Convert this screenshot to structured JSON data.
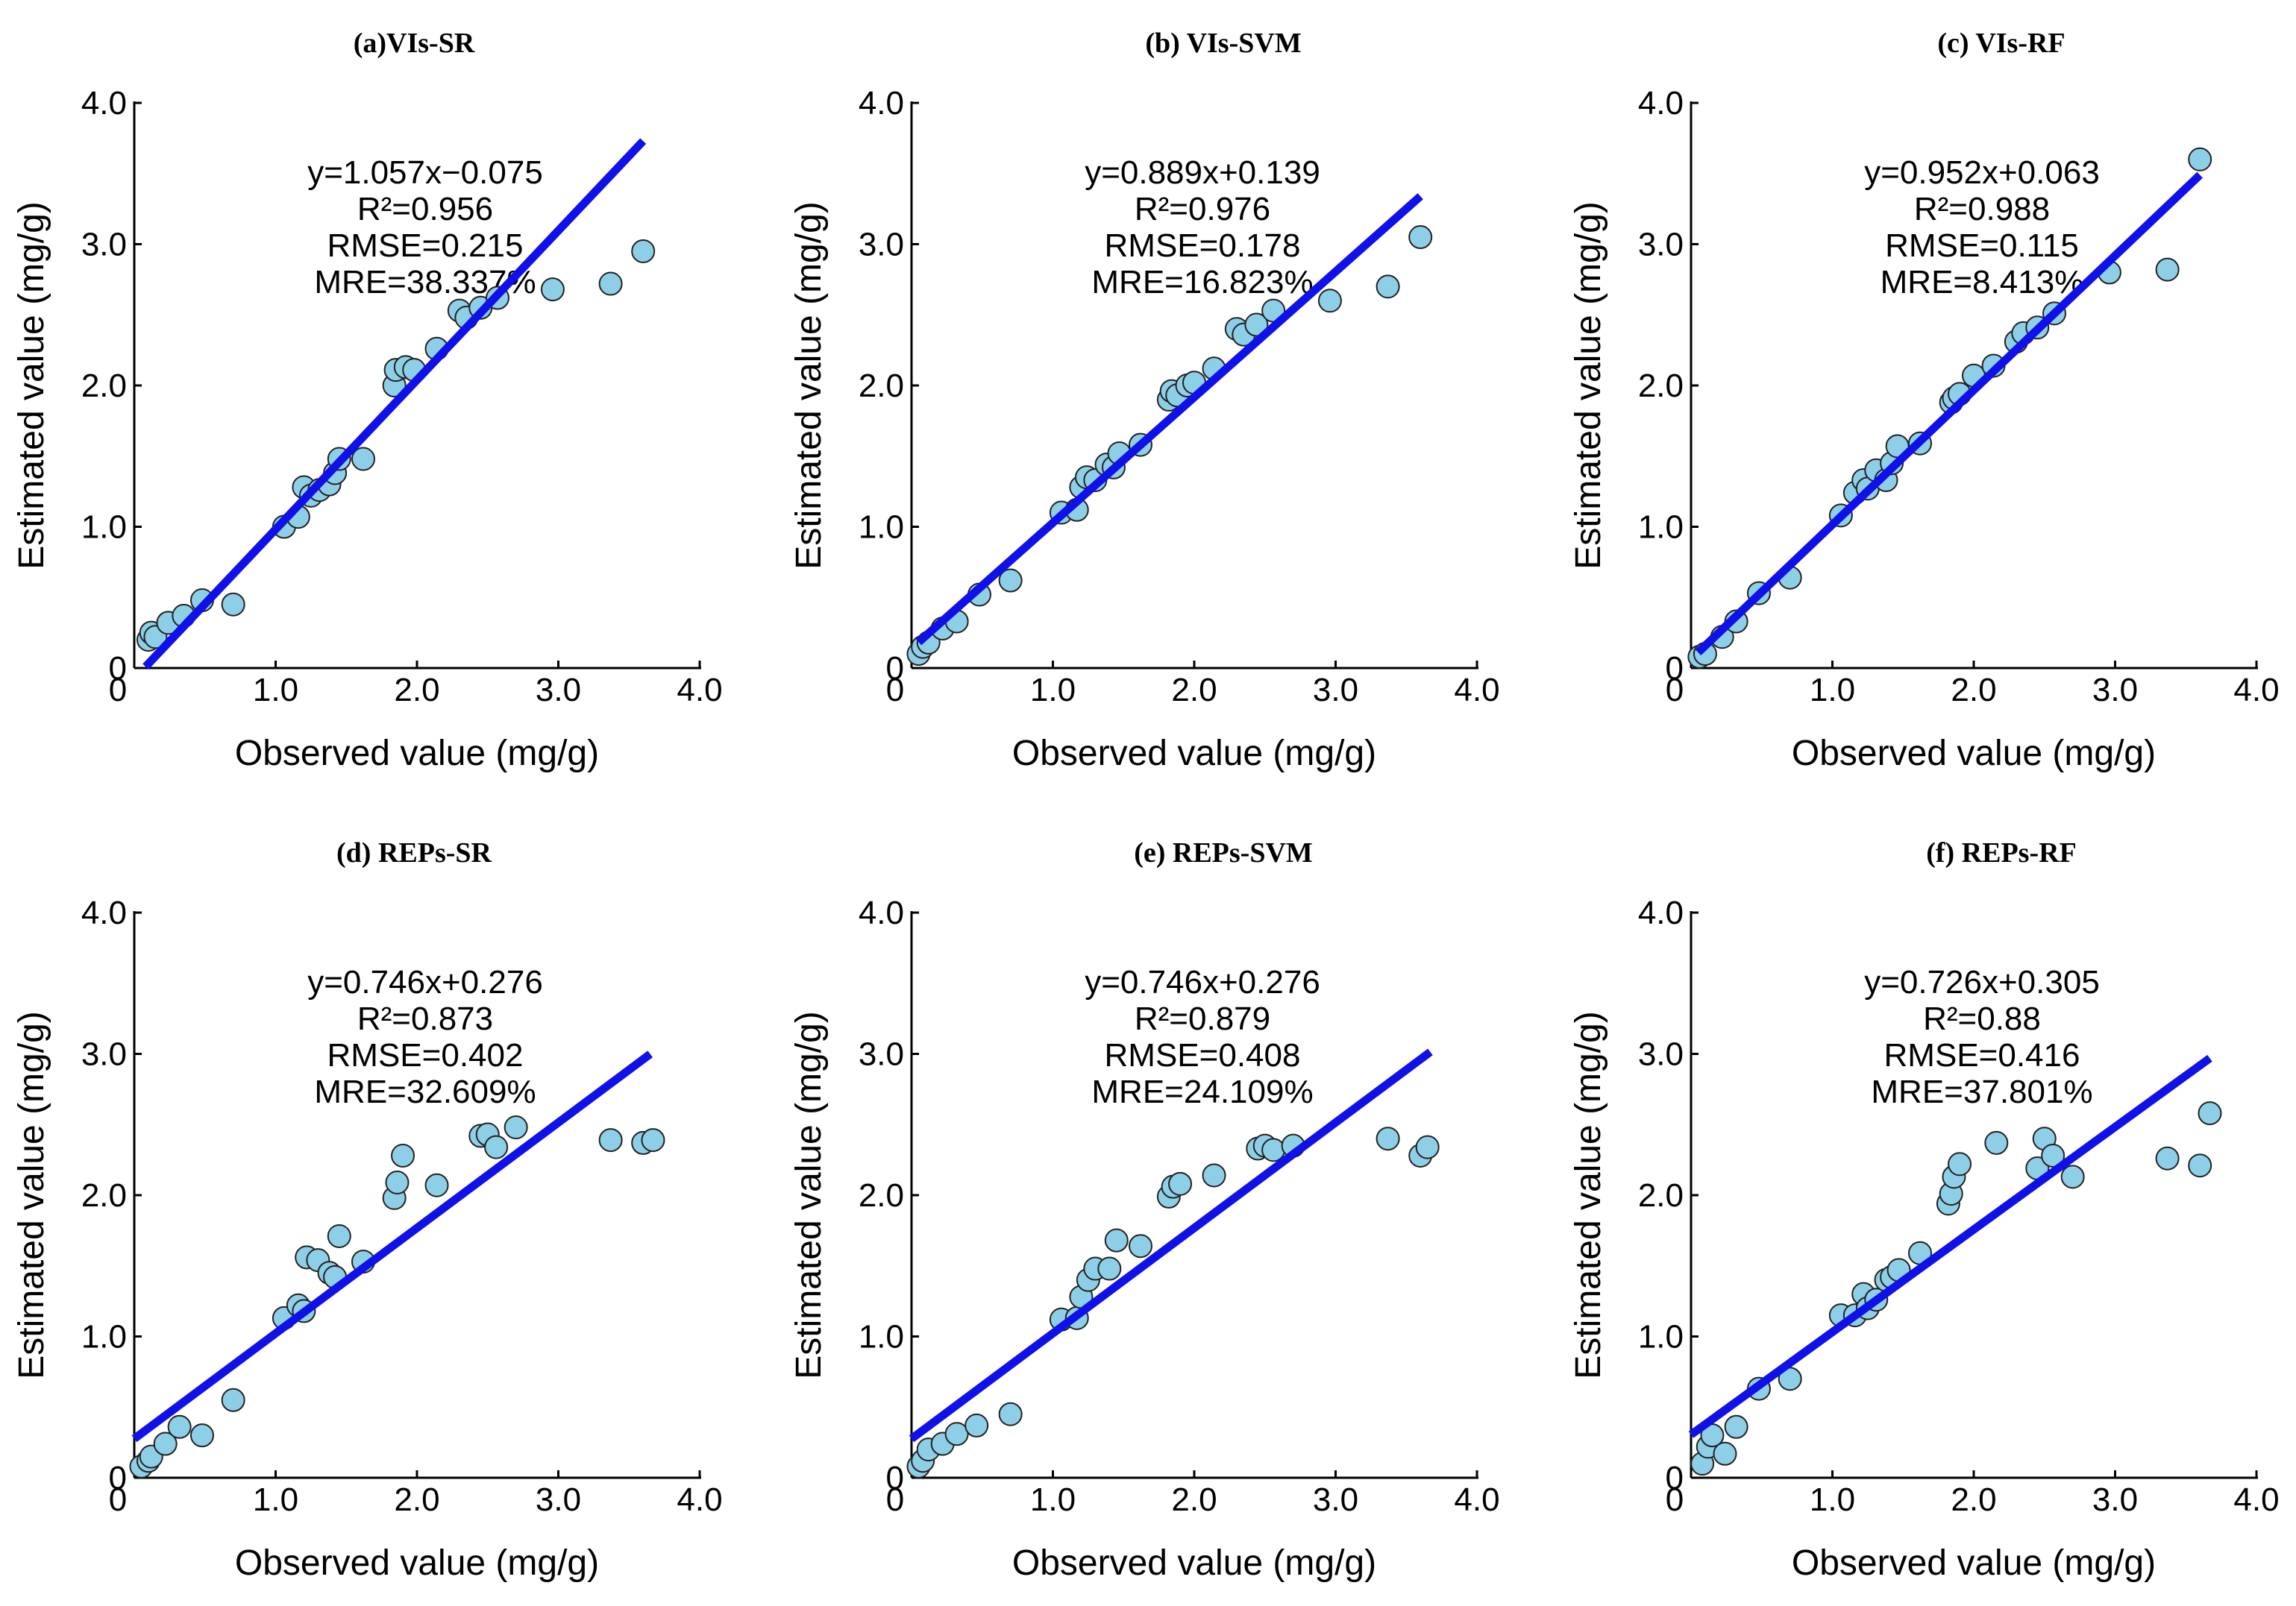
{
  "chart_data": [
    {
      "type": "scatter",
      "title": "(a)VIs-SR",
      "xlabel": "Observed value (mg/g)",
      "ylabel": "Estimated value (mg/g)",
      "xlim": [
        0,
        4
      ],
      "ylim": [
        0,
        4
      ],
      "x_ticks": [
        "0",
        "1.0",
        "2.0",
        "3.0",
        "4.0"
      ],
      "y_ticks": [
        "0",
        "1.0",
        "2.0",
        "3.0",
        "4.0"
      ],
      "annotations": [
        "y=1.057x−0.075",
        "R²=0.956",
        "RMSE=0.215",
        "MRE=38.337%"
      ],
      "fit": {
        "slope": 1.057,
        "intercept": -0.075,
        "x_range": [
          0.08,
          3.6
        ]
      },
      "x": [
        0.1,
        0.12,
        0.15,
        0.24,
        0.35,
        0.48,
        0.7,
        1.06,
        1.16,
        1.2,
        1.25,
        1.31,
        1.38,
        1.42,
        1.45,
        1.62,
        1.84,
        1.85,
        1.92,
        1.98,
        2.14,
        2.3,
        2.35,
        2.45,
        2.57,
        2.96,
        3.37,
        3.6
      ],
      "y": [
        0.2,
        0.25,
        0.22,
        0.32,
        0.37,
        0.48,
        0.45,
        1.0,
        1.07,
        1.28,
        1.22,
        1.26,
        1.3,
        1.38,
        1.48,
        1.48,
        2.0,
        2.11,
        2.13,
        2.11,
        2.26,
        2.53,
        2.48,
        2.55,
        2.62,
        2.68,
        2.72,
        2.95
      ]
    },
    {
      "type": "scatter",
      "title": "(b) VIs-SVM",
      "xlabel": "Observed value (mg/g)",
      "ylabel": "Estimated value (mg/g)",
      "xlim": [
        0,
        4
      ],
      "ylim": [
        0,
        4
      ],
      "x_ticks": [
        "0",
        "1.0",
        "2.0",
        "3.0",
        "4.0"
      ],
      "y_ticks": [
        "0",
        "1.0",
        "2.0",
        "3.0",
        "4.0"
      ],
      "annotations": [
        "y=0.889x+0.139",
        "R²=0.976",
        "RMSE=0.178",
        "MRE=16.823%"
      ],
      "fit": {
        "slope": 0.889,
        "intercept": 0.139,
        "x_range": [
          0.05,
          3.6
        ]
      },
      "x": [
        0.05,
        0.08,
        0.12,
        0.22,
        0.32,
        0.48,
        0.7,
        1.06,
        1.17,
        1.2,
        1.24,
        1.3,
        1.38,
        1.43,
        1.47,
        1.62,
        1.82,
        1.84,
        1.88,
        1.95,
        2.0,
        2.14,
        2.3,
        2.35,
        2.44,
        2.56,
        2.96,
        3.37,
        3.6
      ],
      "y": [
        0.1,
        0.15,
        0.18,
        0.28,
        0.33,
        0.52,
        0.62,
        1.1,
        1.12,
        1.28,
        1.35,
        1.33,
        1.44,
        1.42,
        1.52,
        1.58,
        1.9,
        1.96,
        1.93,
        2.0,
        2.02,
        2.12,
        2.4,
        2.36,
        2.43,
        2.53,
        2.6,
        2.7,
        3.05
      ]
    },
    {
      "type": "scatter",
      "title": "(c) VIs-RF",
      "xlabel": "Observed value (mg/g)",
      "ylabel": "Estimated value (mg/g)",
      "xlim": [
        0,
        4
      ],
      "ylim": [
        0,
        4
      ],
      "x_ticks": [
        "0",
        "1.0",
        "2.0",
        "3.0",
        "4.0"
      ],
      "y_ticks": [
        "0",
        "1.0",
        "2.0",
        "3.0",
        "4.0"
      ],
      "annotations": [
        "y=0.952x+0.063",
        "R²=0.988",
        "RMSE=0.115",
        "MRE=8.413%"
      ],
      "fit": {
        "slope": 0.952,
        "intercept": 0.063,
        "x_range": [
          0.05,
          3.6
        ]
      },
      "x": [
        0.06,
        0.1,
        0.22,
        0.32,
        0.48,
        0.7,
        1.06,
        1.16,
        1.22,
        1.25,
        1.31,
        1.38,
        1.42,
        1.46,
        1.62,
        1.84,
        1.86,
        1.9,
        2.0,
        2.14,
        2.3,
        2.35,
        2.45,
        2.57,
        2.96,
        3.37,
        3.6
      ],
      "y": [
        0.08,
        0.1,
        0.22,
        0.33,
        0.53,
        0.64,
        1.08,
        1.24,
        1.33,
        1.27,
        1.4,
        1.33,
        1.45,
        1.57,
        1.59,
        1.88,
        1.91,
        1.94,
        2.07,
        2.14,
        2.31,
        2.37,
        2.41,
        2.51,
        2.8,
        2.82,
        3.6
      ]
    },
    {
      "type": "scatter",
      "title": "(d) REPs-SR",
      "xlabel": "Observed value (mg/g)",
      "ylabel": "Estimated value (mg/g)",
      "xlim": [
        0,
        4
      ],
      "ylim": [
        0,
        4
      ],
      "x_ticks": [
        "0",
        "1.0",
        "2.0",
        "3.0",
        "4.0"
      ],
      "y_ticks": [
        "0",
        "1.0",
        "2.0",
        "3.0",
        "4.0"
      ],
      "annotations": [
        "y=0.746x+0.276",
        "R²=0.873",
        "RMSE=0.402",
        "MRE=32.609%"
      ],
      "fit": {
        "slope": 0.746,
        "intercept": 0.276,
        "x_range": [
          0.0,
          3.65
        ]
      },
      "x": [
        0.05,
        0.1,
        0.12,
        0.22,
        0.32,
        0.48,
        0.7,
        1.06,
        1.16,
        1.2,
        1.22,
        1.3,
        1.38,
        1.42,
        1.45,
        1.62,
        1.84,
        1.86,
        1.9,
        2.14,
        2.45,
        2.5,
        2.56,
        2.7,
        3.37,
        3.6,
        3.67
      ],
      "y": [
        0.08,
        0.12,
        0.15,
        0.24,
        0.36,
        0.3,
        0.55,
        1.13,
        1.22,
        1.18,
        1.56,
        1.54,
        1.45,
        1.42,
        1.71,
        1.53,
        1.98,
        2.09,
        2.28,
        2.07,
        2.42,
        2.43,
        2.34,
        2.48,
        2.39,
        2.37,
        2.39
      ]
    },
    {
      "type": "scatter",
      "title": "(e) REPs-SVM",
      "xlabel": "Observed value (mg/g)",
      "ylabel": "Estimated value (mg/g)",
      "xlim": [
        0,
        4
      ],
      "ylim": [
        0,
        4
      ],
      "x_ticks": [
        "0",
        "1.0",
        "2.0",
        "3.0",
        "4.0"
      ],
      "y_ticks": [
        "0",
        "1.0",
        "2.0",
        "3.0",
        "4.0"
      ],
      "annotations": [
        "y=0.746x+0.276",
        "R²=0.879",
        "RMSE=0.408",
        "MRE=24.109%"
      ],
      "fit": {
        "slope": 0.746,
        "intercept": 0.276,
        "x_range": [
          0.0,
          3.67
        ]
      },
      "x": [
        0.05,
        0.08,
        0.12,
        0.22,
        0.32,
        0.46,
        0.7,
        1.06,
        1.17,
        1.2,
        1.25,
        1.3,
        1.4,
        1.45,
        1.62,
        1.82,
        1.85,
        1.9,
        2.14,
        2.45,
        2.5,
        2.56,
        2.7,
        3.37,
        3.6,
        3.65
      ],
      "y": [
        0.08,
        0.12,
        0.2,
        0.24,
        0.31,
        0.37,
        0.45,
        1.12,
        1.13,
        1.28,
        1.4,
        1.48,
        1.48,
        1.68,
        1.64,
        1.99,
        2.06,
        2.08,
        2.14,
        2.33,
        2.35,
        2.32,
        2.35,
        2.4,
        2.28,
        2.34
      ]
    },
    {
      "type": "scatter",
      "title": "(f) REPs-RF",
      "xlabel": "Observed value (mg/g)",
      "ylabel": "Estimated value (mg/g)",
      "xlim": [
        0,
        4
      ],
      "ylim": [
        0,
        4
      ],
      "x_ticks": [
        "0",
        "1.0",
        "2.0",
        "3.0",
        "4.0"
      ],
      "y_ticks": [
        "0",
        "1.0",
        "2.0",
        "3.0",
        "4.0"
      ],
      "annotations": [
        "y=0.726x+0.305",
        "R²=0.88",
        "RMSE=0.416",
        "MRE=37.801%"
      ],
      "fit": {
        "slope": 0.726,
        "intercept": 0.305,
        "x_range": [
          0.0,
          3.67
        ]
      },
      "x": [
        0.08,
        0.12,
        0.15,
        0.24,
        0.32,
        0.48,
        0.7,
        1.06,
        1.16,
        1.22,
        1.25,
        1.31,
        1.38,
        1.42,
        1.47,
        1.62,
        1.82,
        1.84,
        1.86,
        1.9,
        2.16,
        2.45,
        2.5,
        2.56,
        2.7,
        3.37,
        3.6,
        3.67
      ],
      "y": [
        0.1,
        0.22,
        0.3,
        0.17,
        0.36,
        0.63,
        0.7,
        1.15,
        1.15,
        1.3,
        1.2,
        1.26,
        1.4,
        1.42,
        1.47,
        1.59,
        1.94,
        2.01,
        2.13,
        2.22,
        2.37,
        2.19,
        2.4,
        2.28,
        2.13,
        2.26,
        2.21,
        2.58
      ]
    }
  ]
}
